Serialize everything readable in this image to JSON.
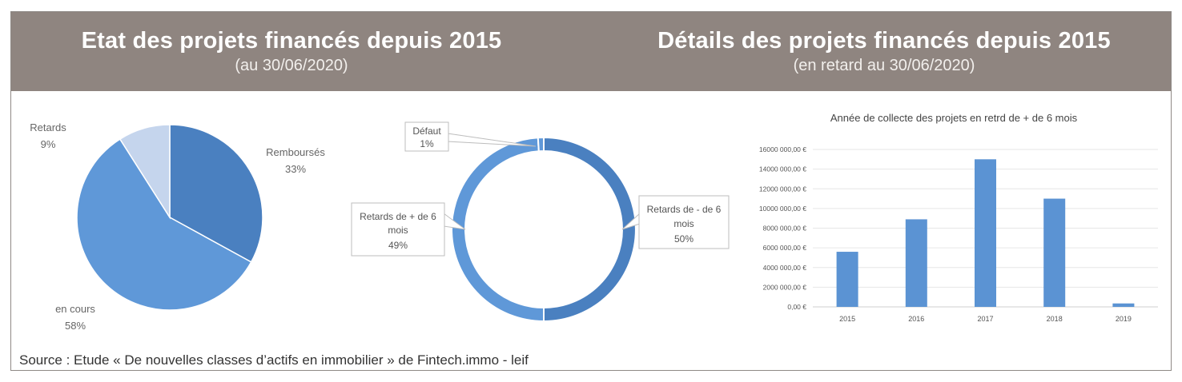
{
  "header": {
    "left_title": "Etat des projets financés depuis 2015",
    "left_subtitle": "(au 30/06/2020)",
    "right_title": "Détails des projets financés depuis 2015",
    "right_subtitle": "(en retard au 30/06/2020)"
  },
  "footer": {
    "source": "Source : Etude « De nouvelles classes d’actifs en immobilier » de Fintech.immo - leif"
  },
  "colors": {
    "header_bg": "#8f8580",
    "dark_blue": "#4a80c0",
    "mid_blue": "#5f98d8",
    "light_blue": "#c5d5ed",
    "bar_blue": "#5b93d3"
  },
  "chart_data": [
    {
      "type": "pie",
      "labels": [
        "Remboursés",
        "en cours",
        "Retards"
      ],
      "values": [
        33,
        58,
        9
      ],
      "value_labels": [
        "33%",
        "58%",
        "9%"
      ],
      "colors": [
        "#4a80c0",
        "#5f98d8",
        "#c5d5ed"
      ]
    },
    {
      "type": "pie",
      "subtype": "donut",
      "labels": [
        "Retards de - de 6 mois",
        "Retards de + de 6 mois",
        "Défaut"
      ],
      "values": [
        50,
        49,
        1
      ],
      "value_labels": [
        "50%",
        "49%",
        "1%"
      ],
      "colors": [
        "#4a80c0",
        "#5f98d8",
        "#5f98d8"
      ]
    },
    {
      "type": "bar",
      "title": "Année de collecte des projets en retrd de + de 6 mois",
      "categories": [
        "2015",
        "2016",
        "2017",
        "2018",
        "2019"
      ],
      "values": [
        5600000,
        8900000,
        15000000,
        11000000,
        350000
      ],
      "ylim": [
        0,
        16000000
      ],
      "yticks": [
        0,
        2000000,
        4000000,
        6000000,
        8000000,
        10000000,
        12000000,
        14000000,
        16000000
      ],
      "ytick_labels": [
        "0,00 €",
        "2000 000,00 €",
        "4000 000,00 €",
        "6000 000,00 €",
        "8000 000,00 €",
        "10000 000,00 €",
        "12000 000,00 €",
        "14000 000,00 €",
        "16000 000,00 €"
      ],
      "grid": true,
      "color": "#5b93d3"
    }
  ]
}
